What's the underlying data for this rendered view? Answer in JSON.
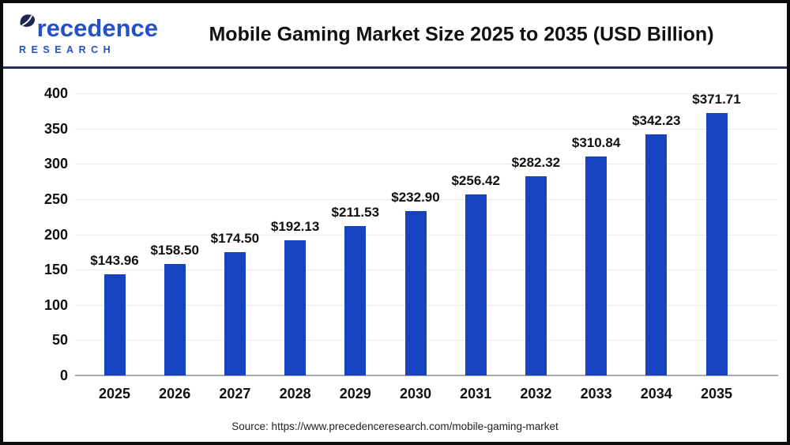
{
  "header": {
    "logo": {
      "name": "Precedence",
      "subtext": "RESEARCH"
    },
    "title": "Mobile Gaming Market Size 2025 to 2035 (USD Billion)"
  },
  "chart_data": {
    "type": "bar",
    "title": "Mobile Gaming Market Size 2025 to 2035 (USD Billion)",
    "categories": [
      "2025",
      "2026",
      "2027",
      "2028",
      "2029",
      "2030",
      "2031",
      "2032",
      "2033",
      "2034",
      "2035"
    ],
    "values": [
      143.96,
      158.5,
      174.5,
      192.13,
      211.53,
      232.9,
      256.42,
      282.32,
      310.84,
      342.23,
      371.71
    ],
    "value_labels": [
      "$143.96",
      "$158.50",
      "$174.50",
      "$192.13",
      "$211.53",
      "$232.90",
      "$256.42",
      "$282.32",
      "$310.84",
      "$342.23",
      "$371.71"
    ],
    "xlabel": "",
    "ylabel": "",
    "ylim": [
      0,
      400
    ],
    "yticks": [
      0,
      50,
      100,
      150,
      200,
      250,
      300,
      350,
      400
    ],
    "grid": "horizontal",
    "legend_position": "none",
    "bar_color": "#1843c0"
  },
  "colors": {
    "logo_blue": "#2450c8",
    "logo_leaf_navy": "#1c2554",
    "divider_navy": "#252f63",
    "bar_blue": "#1843c0",
    "gridline": "#ebebeb",
    "axis_line": "#a9a9a9",
    "text": "#111111",
    "frame_border": "#0b0b0b"
  },
  "source": {
    "text": "Source: https://www.precedenceresearch.com/mobile-gaming-market"
  }
}
